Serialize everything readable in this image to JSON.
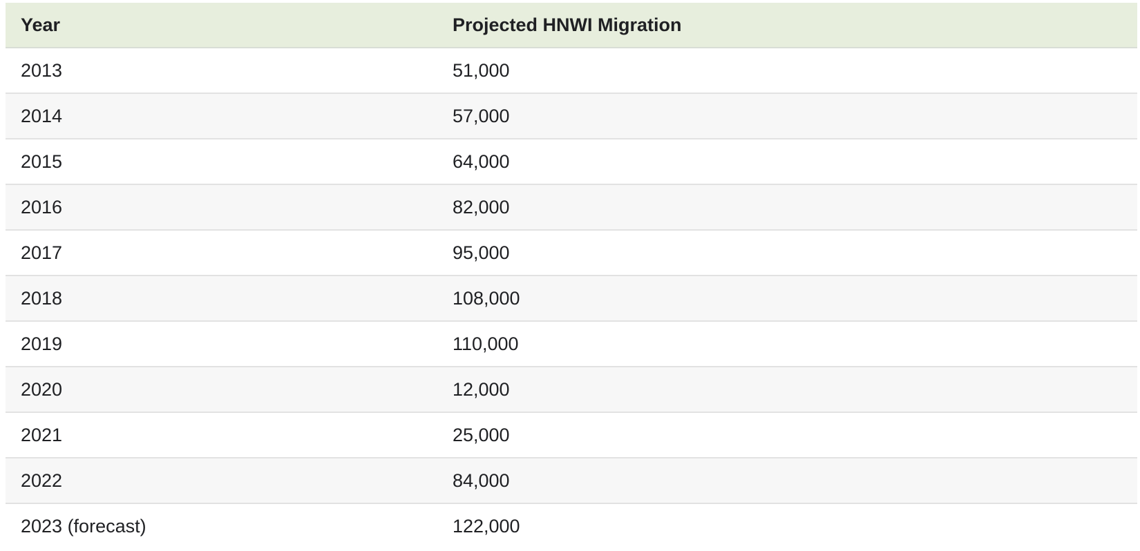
{
  "table": {
    "columns": [
      "Year",
      "Projected HNWI Migration"
    ],
    "rows": [
      [
        "2013",
        "51,000"
      ],
      [
        "2014",
        "57,000"
      ],
      [
        "2015",
        "64,000"
      ],
      [
        "2016",
        "82,000"
      ],
      [
        "2017",
        "95,000"
      ],
      [
        "2018",
        "108,000"
      ],
      [
        "2019",
        "110,000"
      ],
      [
        "2020",
        "12,000"
      ],
      [
        "2021",
        "25,000"
      ],
      [
        "2022",
        "84,000"
      ],
      [
        "2023 (forecast)",
        "122,000"
      ]
    ]
  },
  "colors": {
    "header_bg": "#e7eedd",
    "row_bg": "#ffffff",
    "row_alt_bg": "#f7f7f7",
    "row_border": "#e2e2e2",
    "header_border": "#d9ddd6",
    "text": "#1f2023"
  },
  "chart_data": {
    "type": "table",
    "title": "Projected HNWI Migration",
    "columns": [
      "Year",
      "Projected HNWI Migration"
    ],
    "categories": [
      "2013",
      "2014",
      "2015",
      "2016",
      "2017",
      "2018",
      "2019",
      "2020",
      "2021",
      "2022",
      "2023 (forecast)"
    ],
    "values": [
      51000,
      57000,
      64000,
      82000,
      95000,
      108000,
      110000,
      12000,
      25000,
      84000,
      122000
    ]
  }
}
